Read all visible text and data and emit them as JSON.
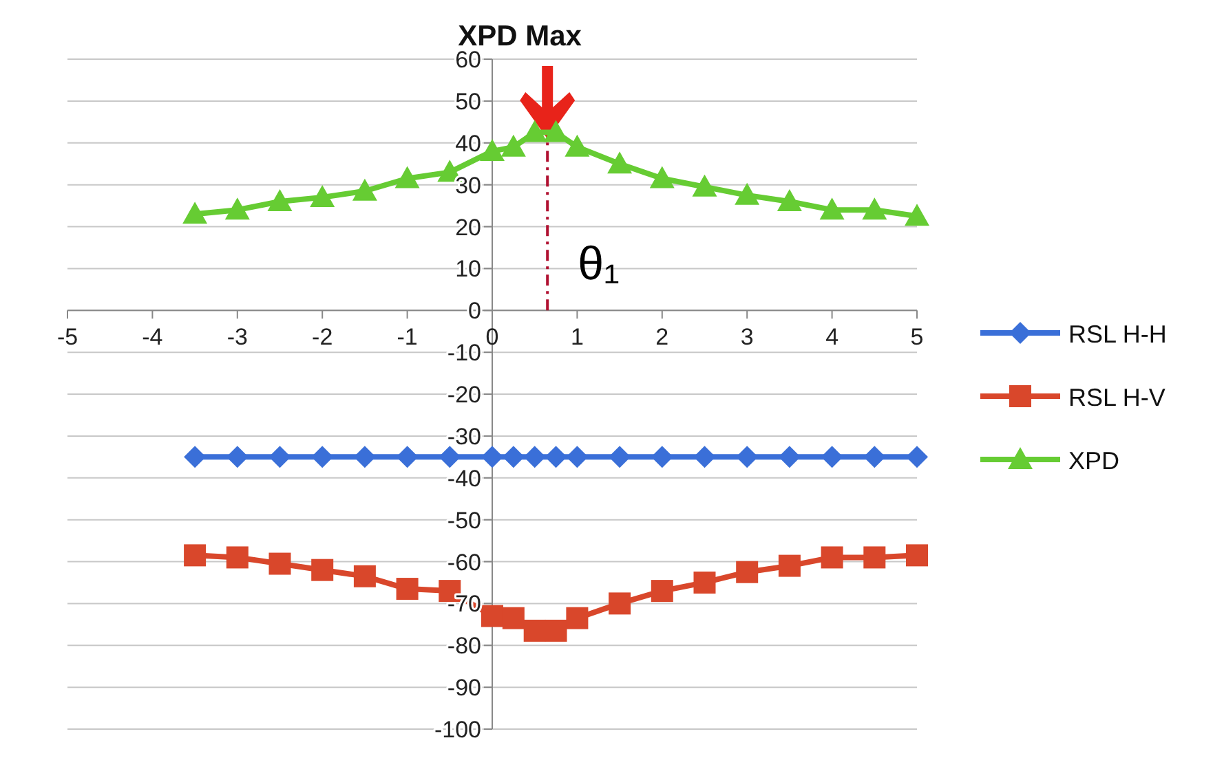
{
  "chart_data": {
    "type": "line",
    "x": [
      -3.5,
      -3,
      -2.5,
      -2,
      -1.5,
      -1,
      -0.5,
      0,
      0.25,
      0.5,
      0.75,
      1,
      1.5,
      2,
      2.5,
      3,
      3.5,
      4,
      4.5,
      5
    ],
    "series": [
      {
        "name": "RSL H-H",
        "color": "#3a6fd8",
        "marker": "diamond",
        "values": [
          -35,
          -35,
          -35,
          -35,
          -35,
          -35,
          -35,
          -35,
          -35,
          -35,
          -35,
          -35,
          -35,
          -35,
          -35,
          -35,
          -35,
          -35,
          -35,
          -35
        ]
      },
      {
        "name": "RSL H-V",
        "color": "#d9472b",
        "marker": "square",
        "values": [
          -58.5,
          -59,
          -60.5,
          -62,
          -63.5,
          -66.5,
          -67,
          -73,
          -73.5,
          -76.5,
          -76.5,
          -73.5,
          -70,
          -67,
          -65,
          -62.5,
          -61,
          -59,
          -59,
          -58.5
        ]
      },
      {
        "name": "XPD",
        "color": "#66cc33",
        "marker": "triangle",
        "values": [
          23,
          24,
          26,
          27,
          28.5,
          31.5,
          33,
          38,
          39,
          42.5,
          42.5,
          39,
          35,
          31.5,
          29.5,
          27.5,
          26,
          24,
          24,
          22.5
        ]
      }
    ],
    "xlim": [
      -5,
      5
    ],
    "xticks": [
      -5,
      -4,
      -3,
      -2,
      -1,
      0,
      1,
      2,
      3,
      4,
      5
    ],
    "ylim": [
      -100,
      60
    ],
    "yticks": [
      -100,
      -90,
      -80,
      -70,
      -60,
      -50,
      -40,
      -30,
      -20,
      -10,
      0,
      10,
      20,
      30,
      40,
      50,
      60
    ],
    "grid": "y",
    "legend": "right",
    "ref_lines": [
      {
        "axis": "x",
        "value": 0.65,
        "label": "θ₁",
        "color": "#b01030",
        "line_style": "dashed"
      }
    ],
    "annotations": [
      "XPD Max"
    ]
  }
}
